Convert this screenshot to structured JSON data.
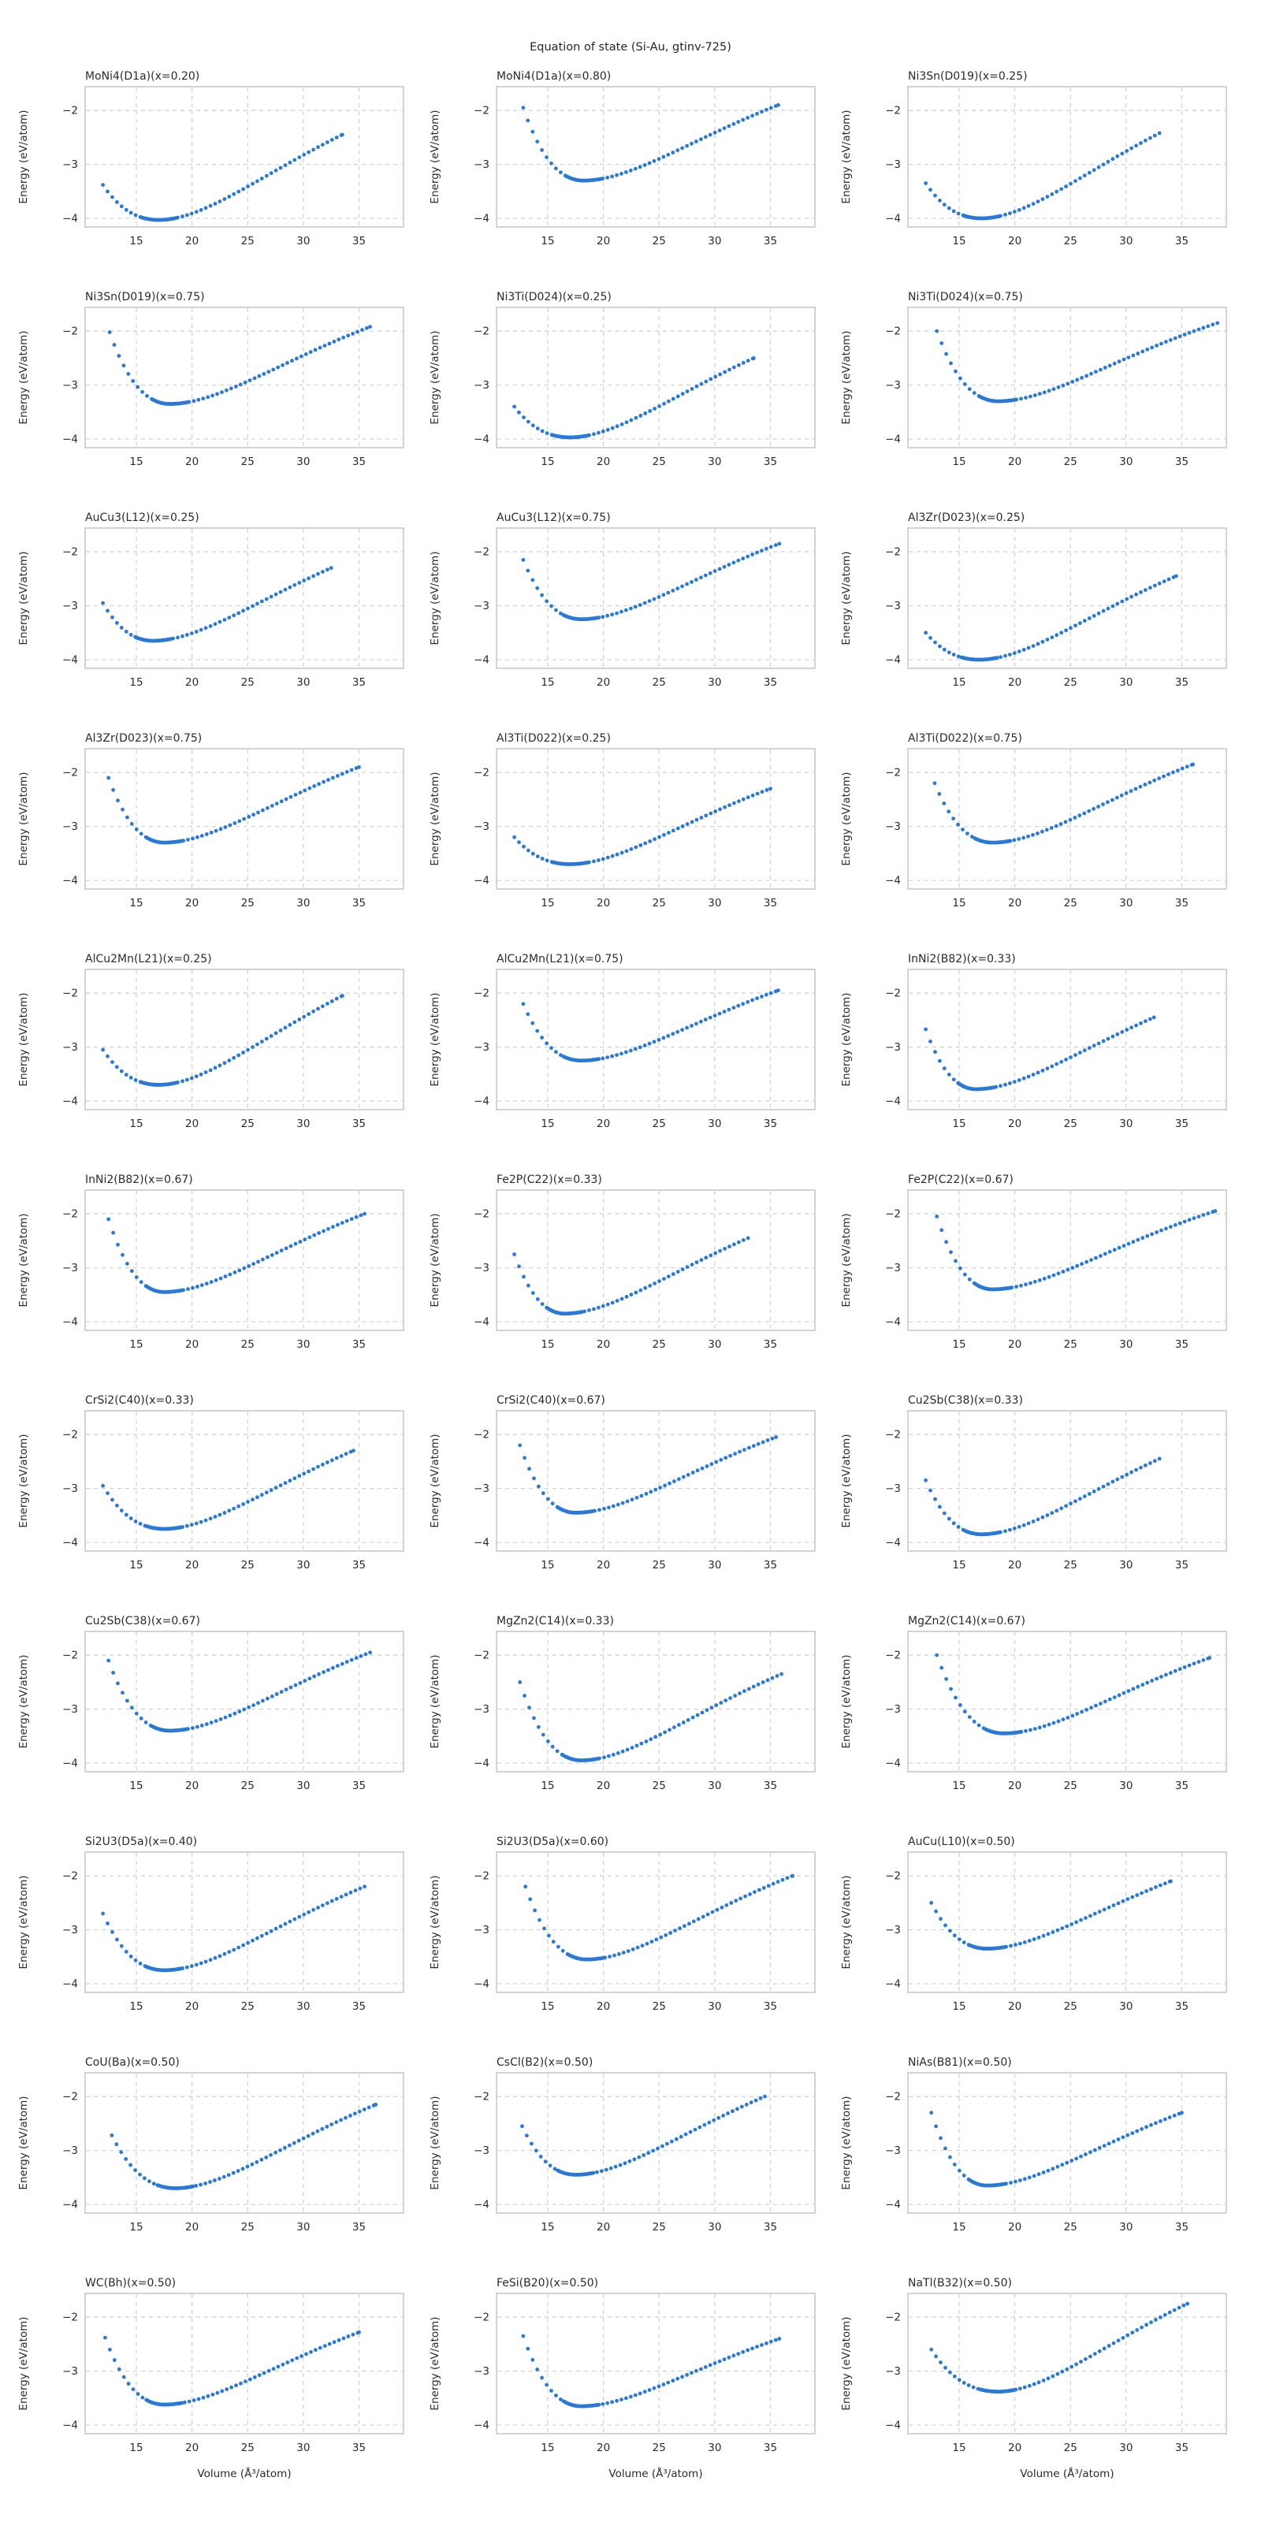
{
  "figure": {
    "suptitle": "Equation of state (Si-Au, gtinv-725)",
    "xlabel": "Volume (Å³/atom)",
    "ylabel": "Energy (eV/atom)",
    "marker_color": "#2979d9",
    "grid_color": "#cfcfcf",
    "frame_color": "#c8c8c8",
    "text_color": "#2b2b2b",
    "grid_on": true,
    "rows": 11,
    "cols": 3
  },
  "chart_data": {
    "type": "scatter",
    "shared_xlim": [
      10.4,
      39.0
    ],
    "shared_ylim": [
      -4.16,
      -1.56
    ],
    "x_ticks": [
      15,
      20,
      25,
      30,
      35
    ],
    "y_ticks": [
      -2,
      -3,
      -4
    ],
    "xlabel": "Volume (Å³/atom)",
    "ylabel": "Energy (eV/atom)",
    "sampling": {
      "note": "EOS scans: coarse volume sweep plus fine sweep around the minimum; energies follow a Morse-like equation-of-state through the anchors below",
      "alpha": 0.07,
      "coarse_step": 0.42,
      "fine_step": 0.11,
      "fine_halfwidth": 1.6
    },
    "subplots": [
      {
        "title": "MoNi4(D1a)(x=0.20)",
        "v_start": 12.0,
        "e_start": -3.38,
        "v_min": 17.0,
        "e_min": -4.03,
        "v_end": 33.5,
        "e_end": -2.45
      },
      {
        "title": "MoNi4(D1a)(x=0.80)",
        "v_start": 12.8,
        "e_start": -1.95,
        "v_min": 18.2,
        "e_min": -3.3,
        "v_end": 35.7,
        "e_end": -1.9
      },
      {
        "title": "Ni3Sn(D019)(x=0.25)",
        "v_start": 12.0,
        "e_start": -3.35,
        "v_min": 17.0,
        "e_min": -4.0,
        "v_end": 33.0,
        "e_end": -2.42
      },
      {
        "title": "Ni3Sn(D019)(x=0.75)",
        "v_start": 12.6,
        "e_start": -2.02,
        "v_min": 18.0,
        "e_min": -3.35,
        "v_end": 36.0,
        "e_end": -1.92
      },
      {
        "title": "Ni3Ti(D024)(x=0.25)",
        "v_start": 12.0,
        "e_start": -3.4,
        "v_min": 17.0,
        "e_min": -3.97,
        "v_end": 33.5,
        "e_end": -2.5
      },
      {
        "title": "Ni3Ti(D024)(x=0.75)",
        "v_start": 13.0,
        "e_start": -2.0,
        "v_min": 18.5,
        "e_min": -3.3,
        "v_end": 38.2,
        "e_end": -1.85
      },
      {
        "title": "AuCu3(L12)(x=0.25)",
        "v_start": 12.0,
        "e_start": -2.95,
        "v_min": 16.5,
        "e_min": -3.65,
        "v_end": 32.5,
        "e_end": -2.3
      },
      {
        "title": "AuCu3(L12)(x=0.75)",
        "v_start": 12.8,
        "e_start": -2.15,
        "v_min": 18.0,
        "e_min": -3.25,
        "v_end": 35.8,
        "e_end": -1.85
      },
      {
        "title": "Al3Zr(D023)(x=0.25)",
        "v_start": 12.0,
        "e_start": -3.5,
        "v_min": 16.8,
        "e_min": -4.0,
        "v_end": 34.5,
        "e_end": -2.45
      },
      {
        "title": "Al3Zr(D023)(x=0.75)",
        "v_start": 12.5,
        "e_start": -2.1,
        "v_min": 17.5,
        "e_min": -3.3,
        "v_end": 35.0,
        "e_end": -1.9
      },
      {
        "title": "Al3Ti(D022)(x=0.25)",
        "v_start": 12.0,
        "e_start": -3.2,
        "v_min": 17.0,
        "e_min": -3.7,
        "v_end": 35.0,
        "e_end": -2.3
      },
      {
        "title": "Al3Ti(D022)(x=0.75)",
        "v_start": 12.8,
        "e_start": -2.2,
        "v_min": 18.0,
        "e_min": -3.3,
        "v_end": 36.0,
        "e_end": -1.85
      },
      {
        "title": "AlCu2Mn(L21)(x=0.25)",
        "v_start": 12.0,
        "e_start": -3.05,
        "v_min": 17.0,
        "e_min": -3.7,
        "v_end": 33.5,
        "e_end": -2.05
      },
      {
        "title": "AlCu2Mn(L21)(x=0.75)",
        "v_start": 12.8,
        "e_start": -2.2,
        "v_min": 18.0,
        "e_min": -3.25,
        "v_end": 35.7,
        "e_end": -1.95
      },
      {
        "title": "InNi2(B82)(x=0.33)",
        "v_start": 12.0,
        "e_start": -2.67,
        "v_min": 16.5,
        "e_min": -3.78,
        "v_end": 32.5,
        "e_end": -2.45
      },
      {
        "title": "InNi2(B82)(x=0.67)",
        "v_start": 12.5,
        "e_start": -2.1,
        "v_min": 17.5,
        "e_min": -3.45,
        "v_end": 35.5,
        "e_end": -2.0
      },
      {
        "title": "Fe2P(C22)(x=0.33)",
        "v_start": 12.0,
        "e_start": -2.75,
        "v_min": 16.5,
        "e_min": -3.85,
        "v_end": 33.0,
        "e_end": -2.45
      },
      {
        "title": "Fe2P(C22)(x=0.67)",
        "v_start": 13.0,
        "e_start": -2.05,
        "v_min": 18.0,
        "e_min": -3.4,
        "v_end": 38.0,
        "e_end": -1.95
      },
      {
        "title": "CrSi2(C40)(x=0.33)",
        "v_start": 12.0,
        "e_start": -2.95,
        "v_min": 17.5,
        "e_min": -3.75,
        "v_end": 34.5,
        "e_end": -2.3
      },
      {
        "title": "CrSi2(C40)(x=0.67)",
        "v_start": 12.5,
        "e_start": -2.2,
        "v_min": 17.5,
        "e_min": -3.45,
        "v_end": 35.5,
        "e_end": -2.05
      },
      {
        "title": "Cu2Sb(C38)(x=0.33)",
        "v_start": 12.0,
        "e_start": -2.85,
        "v_min": 17.0,
        "e_min": -3.85,
        "v_end": 33.0,
        "e_end": -2.45
      },
      {
        "title": "Cu2Sb(C38)(x=0.67)",
        "v_start": 12.5,
        "e_start": -2.1,
        "v_min": 18.0,
        "e_min": -3.4,
        "v_end": 36.0,
        "e_end": -1.95
      },
      {
        "title": "MgZn2(C14)(x=0.33)",
        "v_start": 12.5,
        "e_start": -2.5,
        "v_min": 18.0,
        "e_min": -3.95,
        "v_end": 36.0,
        "e_end": -2.35
      },
      {
        "title": "MgZn2(C14)(x=0.67)",
        "v_start": 13.0,
        "e_start": -2.0,
        "v_min": 19.0,
        "e_min": -3.45,
        "v_end": 37.5,
        "e_end": -2.05
      },
      {
        "title": "Si2U3(D5a)(x=0.40)",
        "v_start": 12.0,
        "e_start": -2.7,
        "v_min": 17.5,
        "e_min": -3.75,
        "v_end": 35.5,
        "e_end": -2.2
      },
      {
        "title": "Si2U3(D5a)(x=0.60)",
        "v_start": 13.0,
        "e_start": -2.2,
        "v_min": 18.5,
        "e_min": -3.55,
        "v_end": 37.0,
        "e_end": -2.0
      },
      {
        "title": "AuCu(L10)(x=0.50)",
        "v_start": 12.5,
        "e_start": -2.5,
        "v_min": 17.5,
        "e_min": -3.35,
        "v_end": 34.0,
        "e_end": -2.1
      },
      {
        "title": "CoU(Ba)(x=0.50)",
        "v_start": 12.8,
        "e_start": -2.72,
        "v_min": 18.5,
        "e_min": -3.7,
        "v_end": 36.5,
        "e_end": -2.15
      },
      {
        "title": "CsCl(B2)(x=0.50)",
        "v_start": 12.7,
        "e_start": -2.55,
        "v_min": 17.5,
        "e_min": -3.45,
        "v_end": 34.5,
        "e_end": -2.0
      },
      {
        "title": "NiAs(B81)(x=0.50)",
        "v_start": 12.5,
        "e_start": -2.3,
        "v_min": 17.5,
        "e_min": -3.65,
        "v_end": 35.0,
        "e_end": -2.3
      },
      {
        "title": "WC(Bh)(x=0.50)",
        "v_start": 12.2,
        "e_start": -2.38,
        "v_min": 17.5,
        "e_min": -3.62,
        "v_end": 35.0,
        "e_end": -2.28
      },
      {
        "title": "FeSi(B20)(x=0.50)",
        "v_start": 12.8,
        "e_start": -2.35,
        "v_min": 18.0,
        "e_min": -3.65,
        "v_end": 35.8,
        "e_end": -2.4
      },
      {
        "title": "NaTl(B32)(x=0.50)",
        "v_start": 12.5,
        "e_start": -2.6,
        "v_min": 18.5,
        "e_min": -3.38,
        "v_end": 35.5,
        "e_end": -1.75
      }
    ]
  }
}
